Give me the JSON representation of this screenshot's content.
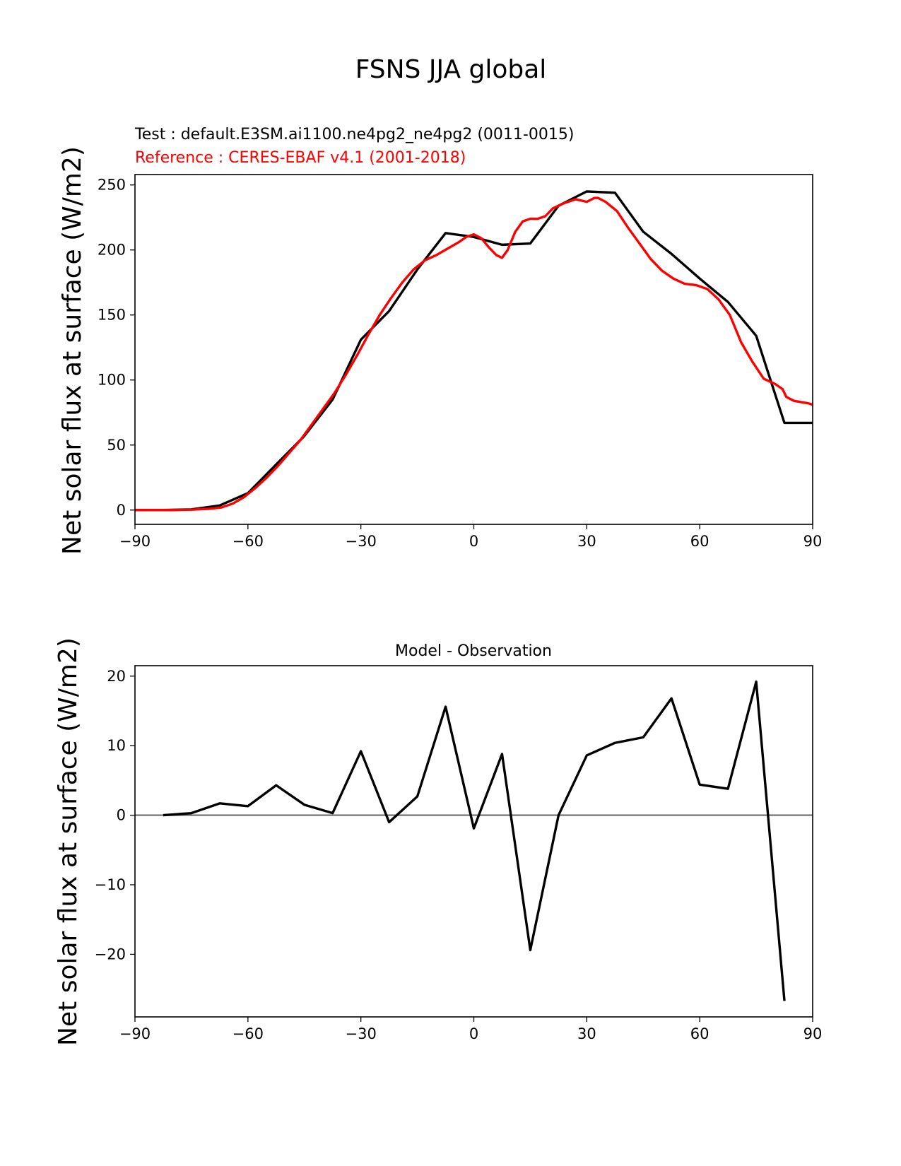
{
  "suptitle": "FSNS JJA global",
  "colors": {
    "test": "#000000",
    "reference": "#ff0000",
    "diff": "#000000",
    "zero_line": "#808080"
  },
  "chart_data": [
    {
      "type": "line",
      "test_label": "Test : default.E3SM.ai1100.ne4pg2_ne4pg2 (0011-0015)",
      "reference_label": "Reference : CERES-EBAF v4.1 (2001-2018)",
      "ylabel": "Net solar flux at surface (W/m2)",
      "xlim": [
        -90,
        90
      ],
      "ylim": [
        -11,
        258
      ],
      "xticks": [
        -90,
        -60,
        -30,
        0,
        30,
        60,
        90
      ],
      "xtick_labels": [
        "−90",
        "−60",
        "−30",
        "0",
        "30",
        "60",
        "90"
      ],
      "yticks": [
        0,
        50,
        100,
        150,
        200,
        250
      ],
      "ytick_labels": [
        "0",
        "50",
        "100",
        "150",
        "200",
        "250"
      ],
      "series": [
        {
          "role": "test",
          "x": [
            -90,
            -82.5,
            -75,
            -67.5,
            -60,
            -52.5,
            -45,
            -37.5,
            -30,
            -22.5,
            -15,
            -7.5,
            0,
            7.5,
            15,
            22.5,
            30,
            37.5,
            45,
            52.5,
            60,
            67.5,
            75,
            82.5,
            90
          ],
          "y": [
            0,
            0,
            0.5,
            3.5,
            13,
            35,
            57,
            85,
            131,
            153,
            185,
            213,
            210,
            204,
            205,
            234,
            245,
            244,
            214,
            197,
            178,
            160,
            134,
            67,
            67
          ]
        },
        {
          "role": "reference",
          "x": [
            -90,
            -85,
            -80,
            -75,
            -70,
            -67,
            -64,
            -61,
            -58,
            -55,
            -52,
            -49,
            -46,
            -43,
            -40,
            -37,
            -34,
            -31,
            -28,
            -25,
            -22,
            -19,
            -16,
            -13,
            -10,
            -7,
            -4,
            -2,
            0,
            2,
            4,
            6,
            7.5,
            9,
            11,
            13,
            15,
            17,
            19,
            21,
            24,
            27,
            30,
            32,
            33,
            35,
            38,
            41,
            44,
            47,
            50,
            53,
            56,
            59,
            62,
            65,
            68,
            71,
            74,
            77,
            80,
            82,
            83,
            85,
            87,
            89,
            90
          ],
          "y": [
            0,
            0,
            0,
            0.3,
            1,
            2,
            5,
            10,
            17,
            25,
            34,
            44,
            54,
            66,
            78,
            90,
            104,
            119,
            135,
            150,
            163,
            175,
            185,
            192,
            196,
            201,
            206,
            210,
            212,
            209,
            202,
            196,
            194,
            200,
            214,
            222,
            224,
            224,
            226,
            232,
            236,
            239,
            237,
            240,
            240,
            237,
            230,
            217,
            205,
            193,
            184,
            178,
            174,
            173,
            170,
            162,
            150,
            129,
            114,
            101,
            97,
            93,
            87,
            84,
            83,
            82,
            81
          ]
        }
      ]
    },
    {
      "type": "line",
      "title": "Model - Observation",
      "ylabel": "Net solar flux at surface (W/m2)",
      "xlim": [
        -90,
        90
      ],
      "ylim": [
        -29,
        21.5
      ],
      "xticks": [
        -90,
        -60,
        -30,
        0,
        30,
        60,
        90
      ],
      "xtick_labels": [
        "−90",
        "−60",
        "−30",
        "0",
        "30",
        "60",
        "90"
      ],
      "yticks": [
        -20,
        -10,
        0,
        10,
        20
      ],
      "ytick_labels": [
        "−20",
        "−10",
        "0",
        "10",
        "20"
      ],
      "zero_line": 0,
      "series": [
        {
          "role": "diff",
          "x": [
            -82.5,
            -75,
            -67.5,
            -60,
            -52.5,
            -45,
            -37.5,
            -30,
            -22.5,
            -15,
            -7.5,
            0,
            7.5,
            15,
            22.5,
            30,
            37.5,
            45,
            52.5,
            60,
            67.5,
            75,
            82.5
          ],
          "y": [
            0,
            0.3,
            1.7,
            1.3,
            4.3,
            1.5,
            0.3,
            9.2,
            -1.0,
            2.7,
            15.6,
            -1.9,
            8.8,
            -19.4,
            0,
            8.6,
            10.4,
            11.2,
            16.8,
            4.4,
            3.8,
            19.2,
            -26.7
          ]
        }
      ]
    }
  ]
}
